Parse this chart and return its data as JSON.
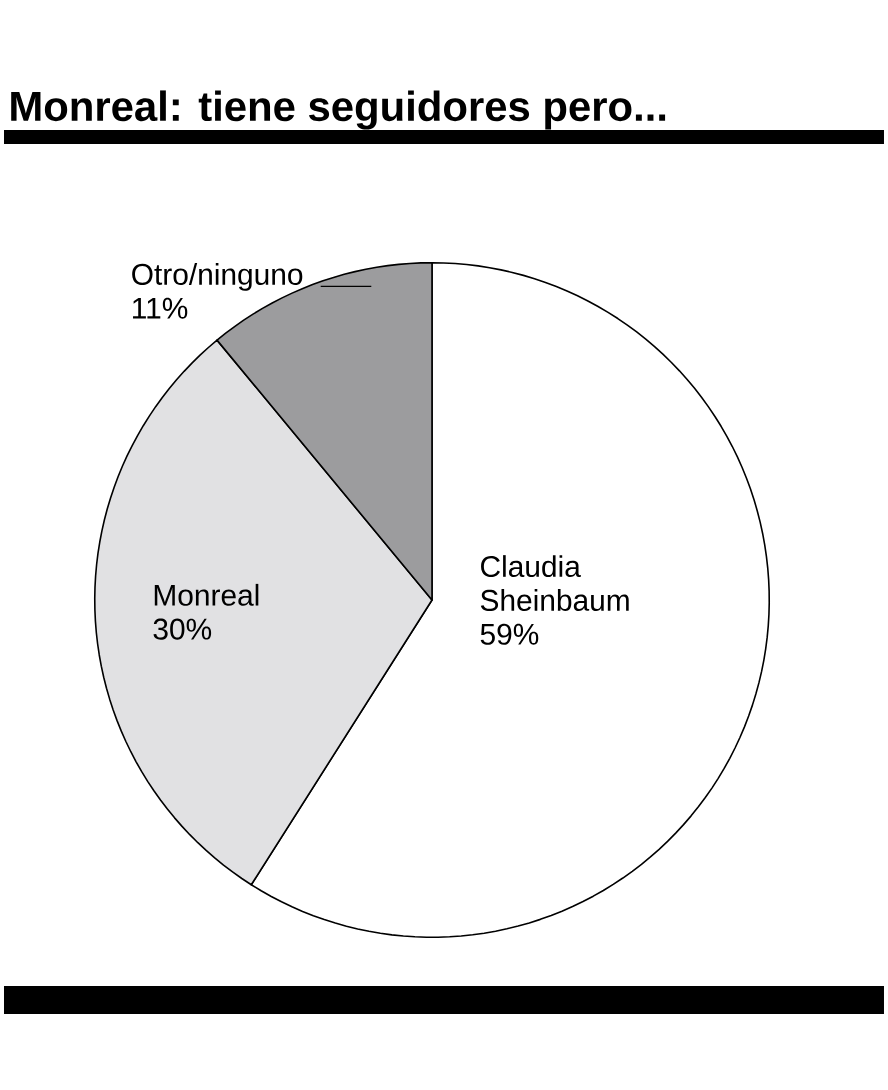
{
  "chart_data": {
    "type": "pie",
    "title": "Monreal: tiene seguidores pero...",
    "categories": [
      "Claudia Sheinbaum",
      "Monreal",
      "Otro/ninguno"
    ],
    "values": [
      59,
      30,
      11
    ],
    "value_labels": [
      "59%",
      "30%",
      "11%"
    ],
    "colors": [
      "#ffffff",
      "#e1e1e3",
      "#9c9c9e"
    ]
  }
}
